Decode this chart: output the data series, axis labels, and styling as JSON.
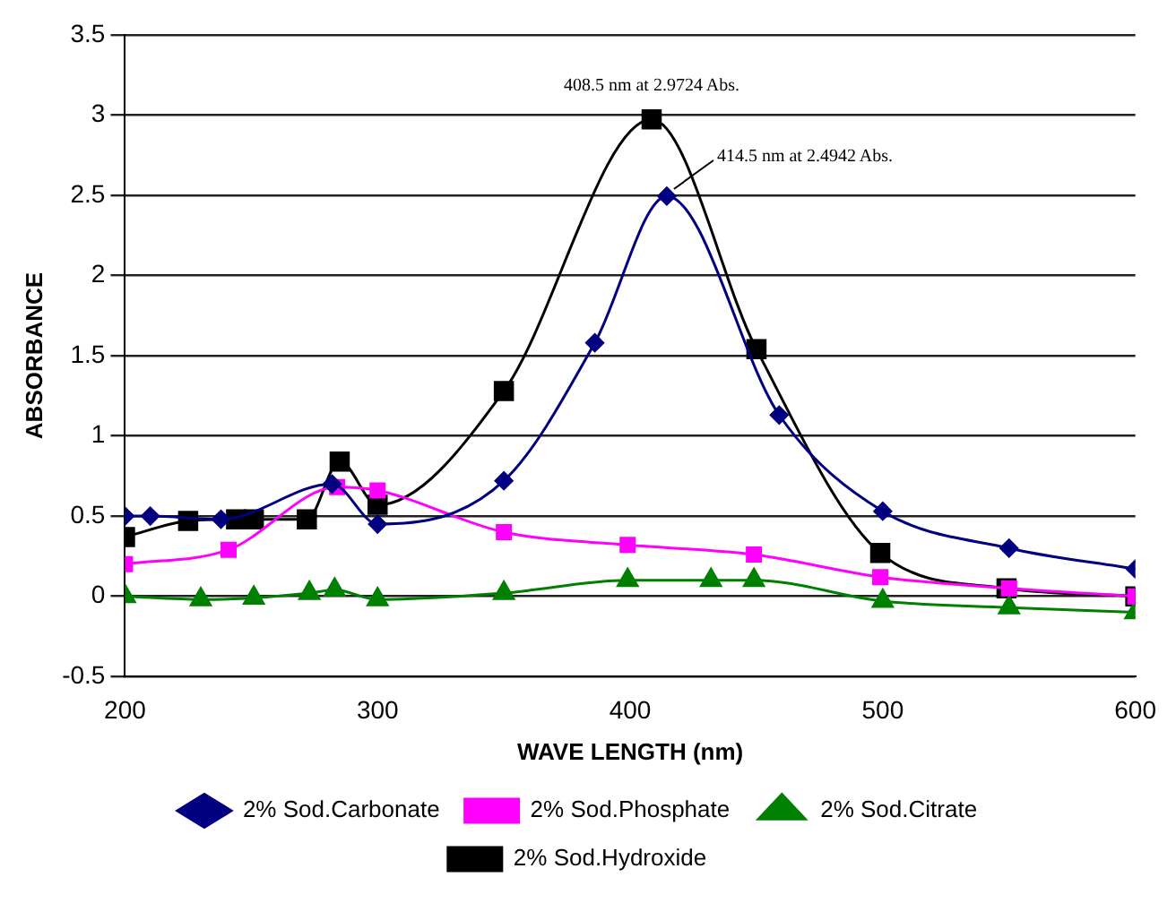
{
  "chart_data": {
    "type": "line",
    "xlabel": "WAVE LENGTH (nm)",
    "ylabel": "ABSORBANCE",
    "xlim": [
      200,
      600
    ],
    "xticks": [
      200,
      300,
      400,
      500,
      600
    ],
    "ylim": [
      -0.5,
      3.5
    ],
    "yticks": [
      -0.5,
      0,
      0.5,
      1,
      1.5,
      2,
      2.5,
      3,
      3.5
    ],
    "grid": "y",
    "legend": "bottom",
    "annotations": [
      {
        "text": "408.5 nm at 2.9724 Abs.",
        "x": 408.5,
        "y": 2.9724
      },
      {
        "text": "414.5 nm at 2.4942 Abs.",
        "x": 414.5,
        "y": 2.4942
      }
    ],
    "series": [
      {
        "name": "2% Sod.Carbonate",
        "color": "#000080",
        "marker": "diamond",
        "x": [
          200,
          210,
          238,
          282,
          300,
          350,
          386,
          414.5,
          459,
          500,
          550,
          600
        ],
        "values": [
          0.5,
          0.5,
          0.48,
          0.7,
          0.45,
          0.72,
          1.58,
          2.4942,
          1.13,
          0.53,
          0.3,
          0.17
        ]
      },
      {
        "name": "2% Sod.Phosphate",
        "color": "#ff00ff",
        "marker": "square",
        "x": [
          200,
          241,
          284,
          300,
          350,
          399,
          449,
          499,
          550,
          600
        ],
        "values": [
          0.2,
          0.29,
          0.68,
          0.66,
          0.4,
          0.32,
          0.26,
          0.12,
          0.05,
          0
        ]
      },
      {
        "name": "2% Sod.Citrate",
        "color": "#008000",
        "marker": "triangle",
        "x": [
          200,
          230,
          251,
          273,
          283,
          300,
          350,
          399,
          432,
          449,
          500,
          550,
          600
        ],
        "values": [
          0,
          -0.02,
          -0.01,
          0.02,
          0.04,
          -0.02,
          0.02,
          0.1,
          0.1,
          0.1,
          -0.03,
          -0.07,
          -0.1
        ]
      },
      {
        "name": "2% Sod.Hydroxide",
        "color": "#000000",
        "marker": "square",
        "x": [
          200,
          225,
          244,
          251,
          272,
          285,
          300,
          350,
          408.5,
          450,
          499,
          549,
          600
        ],
        "values": [
          0.37,
          0.47,
          0.48,
          0.48,
          0.48,
          0.84,
          0.57,
          1.28,
          2.9724,
          1.54,
          0.27,
          0.05,
          0
        ]
      }
    ]
  }
}
